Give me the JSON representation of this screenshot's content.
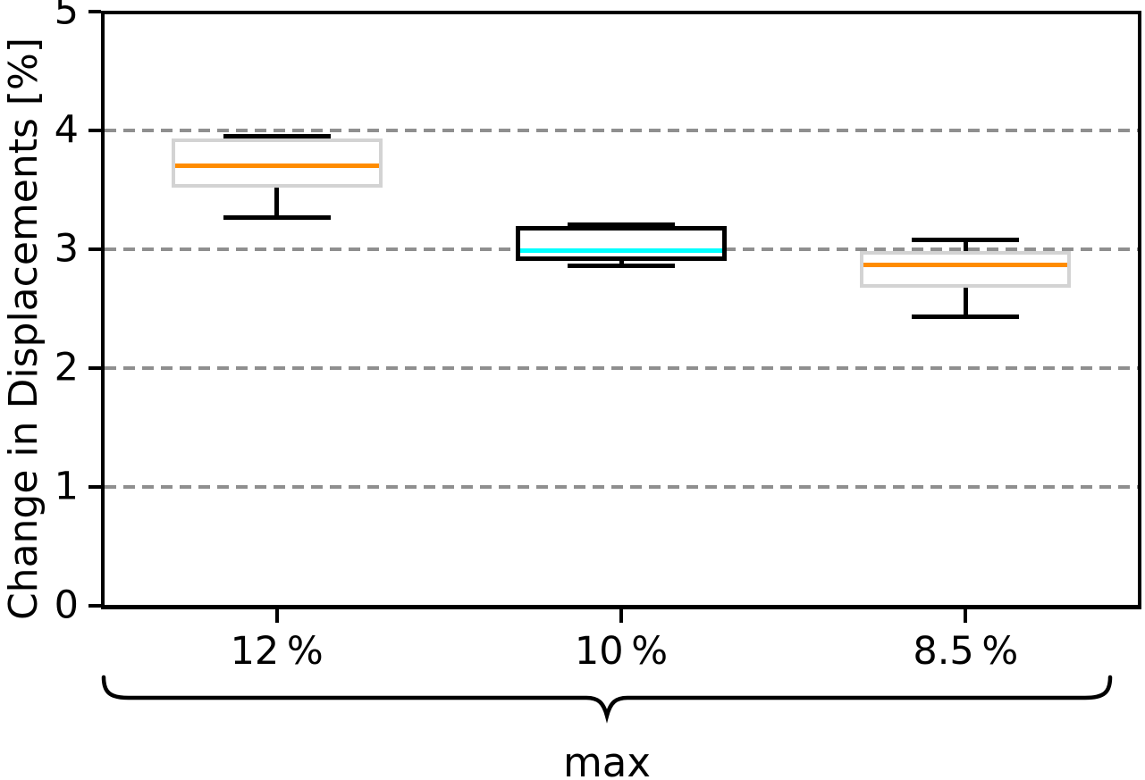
{
  "chart_data": {
    "type": "boxplot",
    "title": "",
    "xlabel": "",
    "ylabel": "Change in Displacements [%]",
    "ylim": [
      0,
      5
    ],
    "yticks": [
      "0",
      "1",
      "2",
      "3",
      "4",
      "5"
    ],
    "gridlines_at": [
      1,
      2,
      3,
      4
    ],
    "grid_style": "dashed",
    "grid_color": "#8f8f8f",
    "legend": "none",
    "categories": [
      "12 %",
      "10 %",
      "8.5 %"
    ],
    "x_group_label": "max",
    "series": [
      {
        "category": "12 %",
        "whisker_low": 3.27,
        "q1": 3.53,
        "median": 3.7,
        "q3": 3.92,
        "whisker_high": 3.95,
        "box_edge_color": "#d3d3d3",
        "box_edge_width": 4,
        "median_color": "#ff8c00",
        "whisker_color": "#000000"
      },
      {
        "category": "10 %",
        "whisker_low": 2.86,
        "q1": 2.92,
        "median": 2.99,
        "q3": 3.18,
        "whisker_high": 3.21,
        "box_edge_color": "#000000",
        "box_edge_width": 5,
        "median_color": "#00ffff",
        "whisker_color": "#000000"
      },
      {
        "category": "8.5 %",
        "whisker_low": 2.43,
        "q1": 2.69,
        "median": 2.87,
        "q3": 2.97,
        "whisker_high": 3.08,
        "box_edge_color": "#d3d3d3",
        "box_edge_width": 4,
        "median_color": "#ff8c00",
        "whisker_color": "#000000"
      }
    ],
    "colors": {
      "axis": "#000000",
      "grid": "#8f8f8f",
      "median_orange": "#ff8c00",
      "median_cyan": "#00ffff",
      "box_gray": "#d3d3d3",
      "background": "#ffffff"
    }
  }
}
